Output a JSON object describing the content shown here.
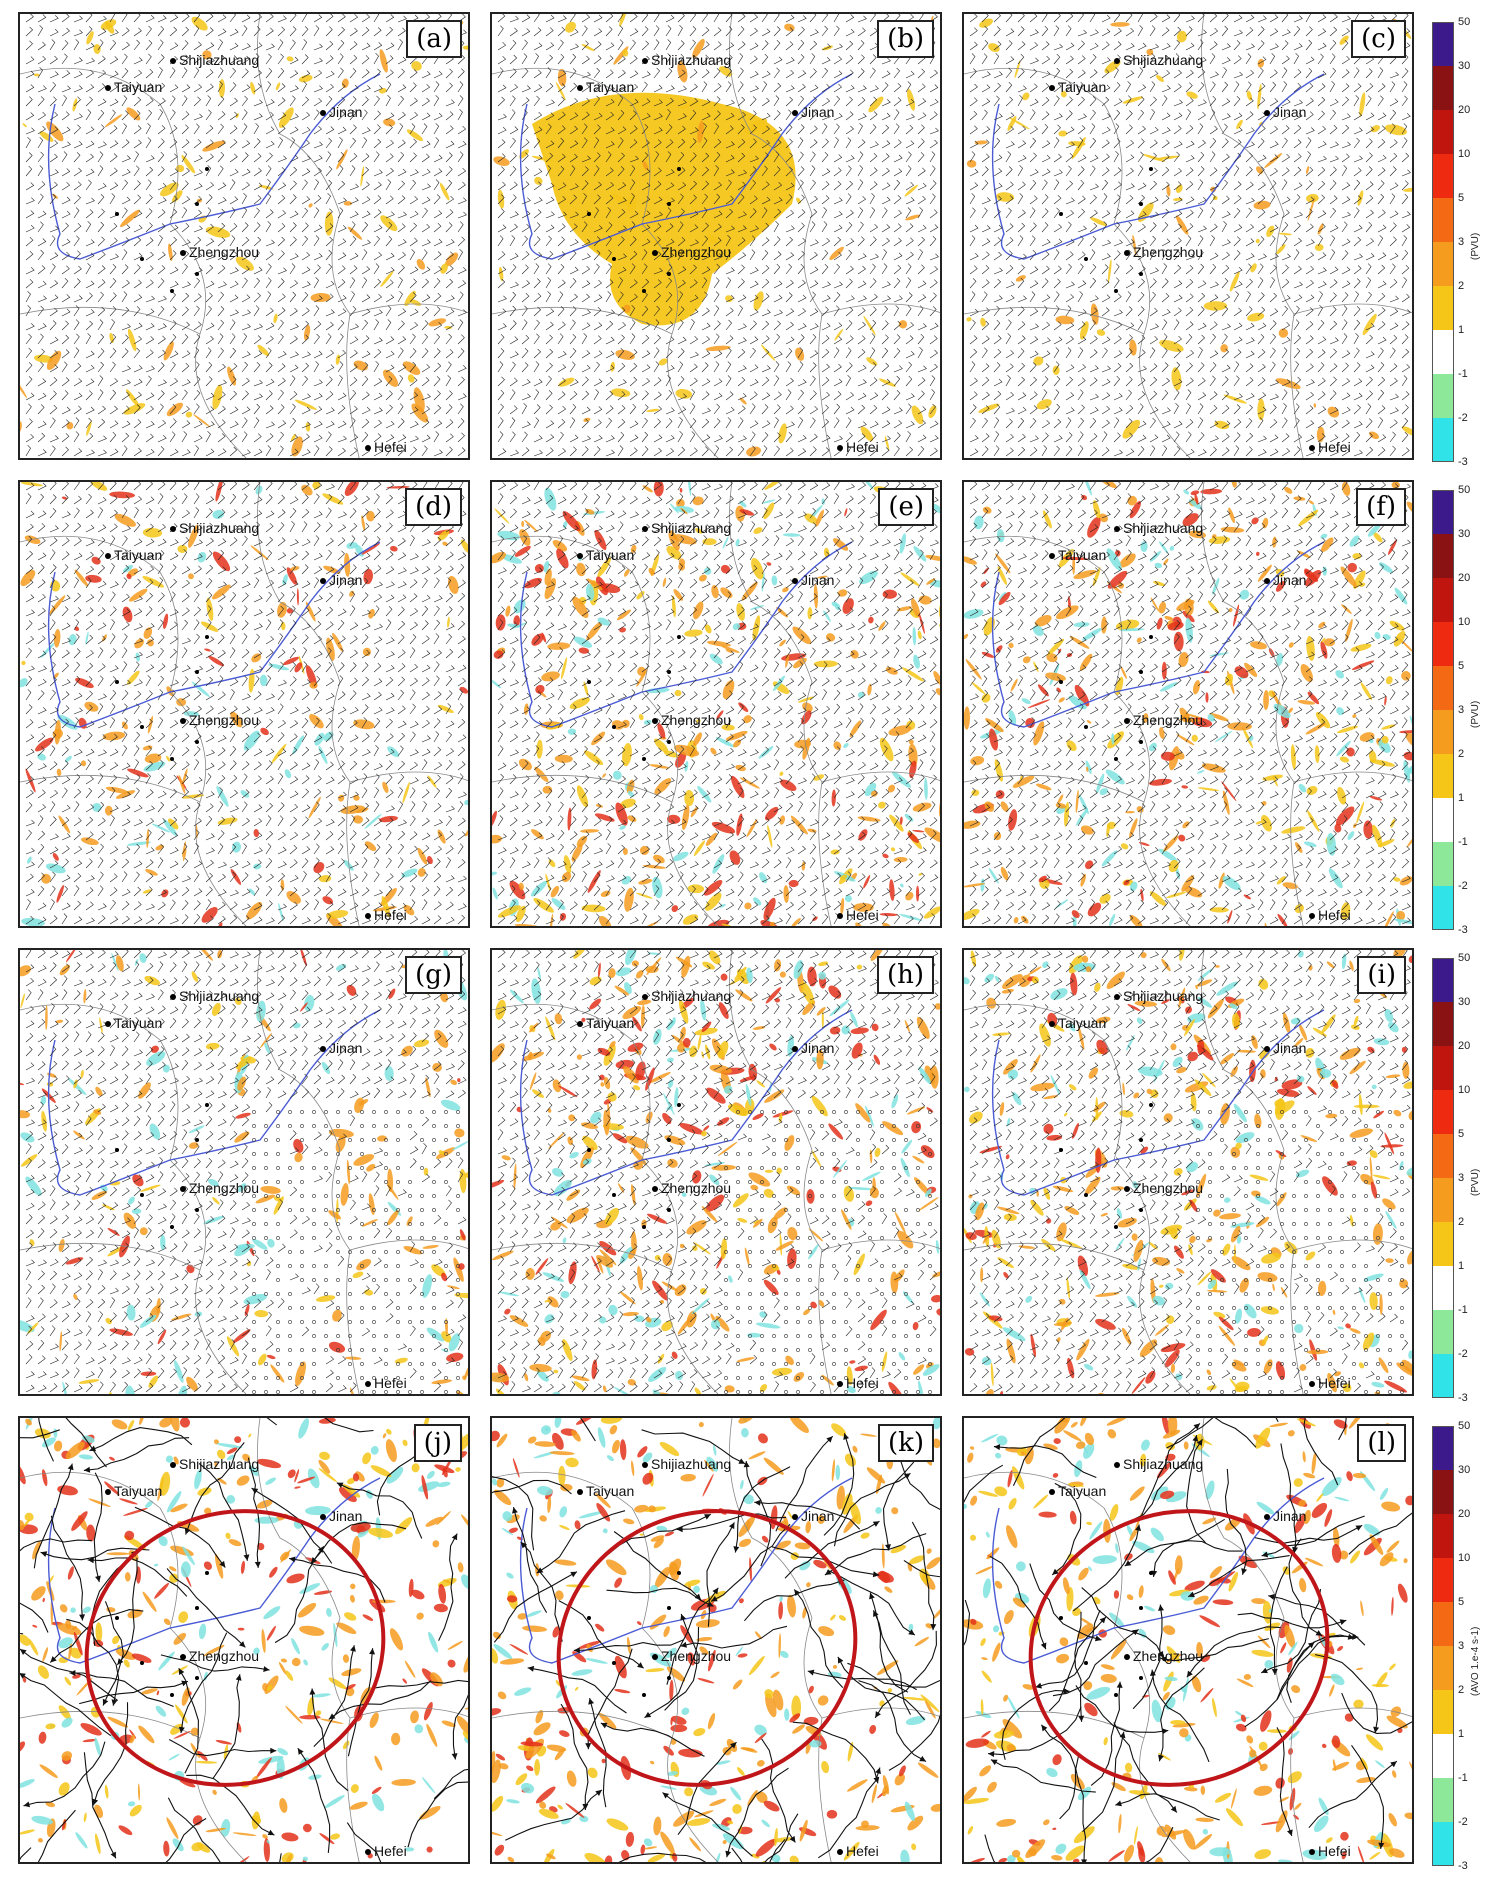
{
  "panels": [
    {
      "label": "(a)",
      "style": "barbs",
      "shade": "light"
    },
    {
      "label": "(b)",
      "style": "barbs",
      "shade": "blob"
    },
    {
      "label": "(c)",
      "style": "barbs",
      "shade": "light"
    },
    {
      "label": "(d)",
      "style": "barbs",
      "shade": "medium"
    },
    {
      "label": "(e)",
      "style": "barbs",
      "shade": "heavy"
    },
    {
      "label": "(f)",
      "style": "barbs",
      "shade": "heavy"
    },
    {
      "label": "(g)",
      "style": "circles",
      "shade": "medium"
    },
    {
      "label": "(h)",
      "style": "circles",
      "shade": "heavy"
    },
    {
      "label": "(i)",
      "style": "circles",
      "shade": "heavy"
    },
    {
      "label": "(j)",
      "style": "streamlines",
      "shade": "heavy",
      "ellipse": true
    },
    {
      "label": "(k)",
      "style": "streamlines",
      "shade": "heavy",
      "ellipse": true
    },
    {
      "label": "(l)",
      "style": "streamlines",
      "shade": "heavy",
      "ellipse": true
    }
  ],
  "cities_major": [
    "Shijiazhuang",
    "Taiyuan",
    "Jinan",
    "Zhengzhou",
    "Hefei"
  ],
  "colorbar": {
    "ticks": [
      "50",
      "30",
      "20",
      "10",
      "5",
      "3",
      "2",
      "1",
      "-1",
      "-2",
      "-3"
    ],
    "colors": [
      "#3d1a8c",
      "#8b1212",
      "#c0150f",
      "#ee2a10",
      "#f46a14",
      "#f59b1e",
      "#f5c518",
      "#ffffff",
      "#8ee89a",
      "#2fe3e8"
    ],
    "units": [
      "(PVU)",
      "(PVU)",
      "(PVU)",
      "(AVO 1.e-4 s-1)"
    ]
  },
  "colors": {
    "shade_yellow": "#f5c518",
    "shade_orange": "#f59b1e",
    "shade_red": "#e3311a",
    "shade_cyan": "#7fe3e0",
    "river": "#4a5bd4",
    "ellipse": "#c0161a",
    "border": "#888888"
  }
}
